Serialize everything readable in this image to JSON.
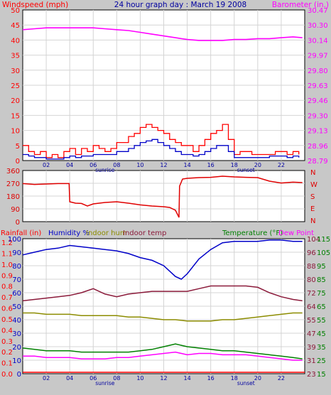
{
  "header": {
    "left_label": "Windspeed (mph)",
    "title": "24 hour graph day : March 19 2008",
    "right_label": "Barometer (in.)"
  },
  "colors": {
    "background": "#c8c8c8",
    "plot_bg": "#ffffff",
    "grid": "#d4d4d4",
    "wind_gust": "#ff0000",
    "wind_avg": "#0000c8",
    "barometer": "#ff00ff",
    "direction": "#e00000",
    "humidity": "#0000c8",
    "indoor_hum": "#8c8c00",
    "indoor_temp": "#8b1a3a",
    "temperature": "#008000",
    "dew_point": "#ff00ff",
    "rainfall": "#ff0000",
    "axis_blue": "#0000a0"
  },
  "chart_data": [
    {
      "type": "line",
      "name": "wind-barometer",
      "ylabel_left": "Windspeed (mph)",
      "ylabel_right": "Barometer (in.)",
      "xlim": [
        0,
        24
      ],
      "ylim_left": [
        0,
        50
      ],
      "ylim_right": [
        28.79,
        30.47
      ],
      "left_ticks": [
        "50",
        "45",
        "40",
        "35",
        "30",
        "25",
        "20",
        "15",
        "10",
        "5",
        "0"
      ],
      "right_ticks": [
        "30.47",
        "30.30",
        "30.14",
        "29.97",
        "29.80",
        "29.63",
        "29.46",
        "29.30",
        "29.13",
        "28.96",
        "28.79"
      ],
      "x_ticks": [
        "02",
        "04",
        "06",
        "08",
        "10",
        "12",
        "14",
        "16",
        "18",
        "20",
        "22"
      ],
      "sun_labels": {
        "sunrise": "sunrise",
        "sunset": "sunset",
        "sunrise_x": 7,
        "sunset_x": 19
      },
      "series": [
        {
          "key": "gust",
          "x": [
            0,
            0.5,
            1,
            1.5,
            2,
            2.5,
            3,
            3.5,
            4,
            4.5,
            5,
            5.5,
            6,
            6.5,
            7,
            7.5,
            8,
            8.5,
            9,
            9.5,
            10,
            10.5,
            11,
            11.5,
            12,
            12.5,
            13,
            13.5,
            14,
            14.5,
            15,
            15.5,
            16,
            16.5,
            17,
            17.5,
            18,
            18.5,
            19,
            19.5,
            20,
            20.5,
            21,
            21.5,
            22,
            22.5,
            23,
            23.5
          ],
          "values": [
            5,
            3,
            2,
            3,
            1,
            2,
            1,
            3,
            4,
            2,
            4,
            3,
            5,
            4,
            3,
            4,
            6,
            6,
            8,
            9,
            11,
            12,
            11,
            10,
            9,
            7,
            6,
            5,
            5,
            3,
            5,
            7,
            9,
            10,
            12,
            7,
            2,
            3,
            3,
            2,
            2,
            2,
            2,
            3,
            3,
            2,
            3,
            2
          ]
        },
        {
          "key": "avg",
          "x": [
            0,
            0.5,
            1,
            1.5,
            2,
            2.5,
            3,
            3.5,
            4,
            4.5,
            5,
            5.5,
            6,
            6.5,
            7,
            7.5,
            8,
            8.5,
            9,
            9.5,
            10,
            10.5,
            11,
            11.5,
            12,
            12.5,
            13,
            13.5,
            14,
            14.5,
            15,
            15.5,
            16,
            16.5,
            17,
            17.5,
            18,
            18.5,
            19,
            19.5,
            20,
            20.5,
            21,
            21.5,
            22,
            22.5,
            23,
            23.5
          ],
          "values": [
            2,
            1.5,
            1,
            1,
            0.5,
            0.5,
            0.5,
            1,
            1.5,
            1,
            1.5,
            1.5,
            2,
            2,
            2,
            2,
            3,
            3,
            4,
            5,
            6,
            6.5,
            7,
            6,
            5,
            4,
            3,
            2,
            2,
            1.5,
            2,
            3,
            4,
            5,
            5,
            3,
            1,
            1,
            1,
            1,
            1,
            1,
            1.5,
            1.5,
            1.5,
            1,
            1.5,
            1
          ]
        },
        {
          "key": "barometer",
          "x": [
            0,
            1,
            2,
            3,
            4,
            5,
            6,
            7,
            8,
            9,
            10,
            11,
            12,
            13,
            14,
            15,
            16,
            17,
            18,
            19,
            20,
            21,
            22,
            23,
            23.8
          ],
          "values": [
            30.25,
            30.26,
            30.27,
            30.27,
            30.27,
            30.27,
            30.27,
            30.26,
            30.25,
            30.24,
            30.22,
            30.2,
            30.18,
            30.16,
            30.14,
            30.13,
            30.13,
            30.13,
            30.14,
            30.14,
            30.15,
            30.15,
            30.16,
            30.17,
            30.16
          ]
        }
      ]
    },
    {
      "type": "line",
      "name": "wind-direction",
      "ylim": [
        0,
        360
      ],
      "left_ticks": [
        "360",
        "270",
        "180",
        "90",
        "0"
      ],
      "right_ticks": [
        "N",
        "W",
        "S",
        "E",
        "N"
      ],
      "series": [
        {
          "key": "direction",
          "x": [
            0,
            1,
            2,
            3,
            3.95,
            4,
            4.5,
            5,
            5.5,
            6,
            7,
            8,
            9,
            10,
            11,
            12,
            12.5,
            13,
            13.3,
            13.35,
            13.6,
            14,
            15,
            16,
            17,
            18,
            19,
            20,
            21,
            22,
            23,
            23.8
          ],
          "values": [
            268,
            262,
            265,
            268,
            268,
            140,
            130,
            128,
            110,
            125,
            135,
            140,
            130,
            118,
            110,
            105,
            100,
            80,
            30,
            250,
            300,
            305,
            310,
            312,
            320,
            315,
            312,
            310,
            285,
            272,
            278,
            275
          ]
        }
      ]
    },
    {
      "type": "line",
      "name": "humidity-temperature",
      "legend": [
        "Rainfall (in)",
        "Humidity %",
        "Indoor hum",
        "Indoor temp",
        "Temperature (°F)",
        "Dew Point"
      ],
      "ylim_humidity": [
        0,
        100
      ],
      "ylim_temp": [
        15,
        115
      ],
      "rain_ticks": [
        "1.2",
        "1.1",
        "1.0",
        "0.9",
        "0.8",
        "0.7",
        "0.6",
        "0.5",
        "0.4",
        "0.3",
        "0.2",
        "0.1",
        "0.0"
      ],
      "hum_ticks": [
        "100",
        "90",
        "80",
        "70",
        "60",
        "50",
        "40",
        "30",
        "20",
        "10",
        "0"
      ],
      "temp_ticks_a": [
        "104",
        "96",
        "88",
        "80",
        "72",
        "64",
        "55",
        "47",
        "39",
        "31",
        "23"
      ],
      "temp_ticks_b": [
        "115",
        "105",
        "95",
        "85",
        "75",
        "65",
        "55",
        "45",
        "35",
        "25",
        "15"
      ],
      "series": [
        {
          "key": "humidity",
          "x": [
            0,
            1,
            2,
            3,
            4,
            5,
            6,
            7,
            8,
            9,
            10,
            11,
            12,
            13,
            13.5,
            14,
            15,
            16,
            17,
            18,
            19,
            20,
            21,
            22,
            23,
            23.8
          ],
          "values": [
            88,
            90,
            92,
            93,
            95,
            94,
            93,
            92,
            91,
            89,
            86,
            84,
            80,
            72,
            70,
            74,
            85,
            92,
            97,
            98,
            98,
            98,
            99,
            99,
            98,
            98
          ]
        },
        {
          "key": "indoor_temp",
          "x": [
            0,
            1,
            2,
            3,
            4,
            5,
            6,
            7,
            8,
            9,
            10,
            11,
            12,
            13,
            14,
            15,
            16,
            17,
            18,
            19,
            20,
            21,
            22,
            23,
            23.8
          ],
          "values": [
            69,
            70,
            71,
            72,
            73,
            75,
            78,
            74,
            72,
            74,
            75,
            76,
            76,
            76,
            76,
            78,
            80,
            80,
            80,
            80,
            79,
            75,
            72,
            70,
            69
          ]
        },
        {
          "key": "indoor_hum",
          "x": [
            0,
            1,
            2,
            3,
            4,
            5,
            6,
            7,
            8,
            9,
            10,
            11,
            12,
            13,
            14,
            15,
            16,
            17,
            18,
            19,
            20,
            21,
            22,
            23,
            23.8
          ],
          "values": [
            45,
            45,
            44,
            44,
            44,
            43,
            43,
            43,
            43,
            42,
            42,
            41,
            40,
            40,
            39,
            39,
            39,
            40,
            40,
            41,
            42,
            43,
            44,
            45,
            45
          ]
        },
        {
          "key": "temperature",
          "x": [
            0,
            1,
            2,
            3,
            4,
            5,
            6,
            7,
            8,
            9,
            10,
            11,
            12,
            13,
            14,
            15,
            16,
            17,
            18,
            19,
            20,
            21,
            22,
            23,
            23.8
          ],
          "values": [
            34,
            33,
            32,
            32,
            32,
            31,
            31,
            31,
            31,
            31,
            32,
            33,
            35,
            37,
            35,
            34,
            33,
            32,
            32,
            31,
            30,
            29,
            28,
            27,
            26
          ]
        },
        {
          "key": "dew_point",
          "x": [
            0,
            1,
            2,
            3,
            4,
            5,
            6,
            7,
            8,
            9,
            10,
            11,
            12,
            13,
            14,
            15,
            16,
            17,
            18,
            19,
            20,
            21,
            22,
            23,
            23.8
          ],
          "values": [
            28,
            28,
            27,
            27,
            27,
            26,
            26,
            26,
            27,
            27,
            28,
            29,
            30,
            31,
            29,
            30,
            30,
            29,
            29,
            29,
            28,
            27,
            26,
            25,
            25
          ]
        },
        {
          "key": "rainfall",
          "x": [
            0,
            24
          ],
          "values": [
            0,
            0
          ]
        }
      ]
    }
  ]
}
